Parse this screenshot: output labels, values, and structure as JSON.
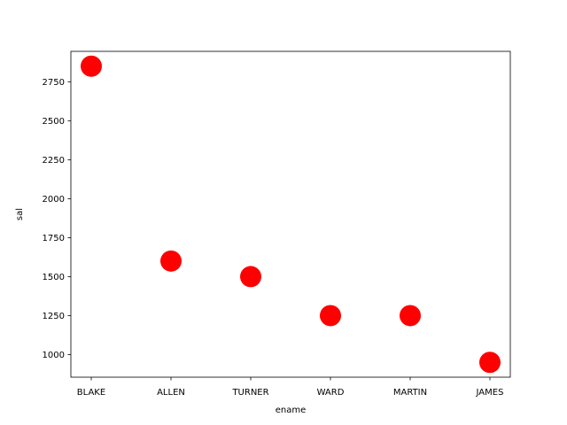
{
  "chart_data": {
    "type": "scatter",
    "title": "",
    "xlabel": "ename",
    "ylabel": "sal",
    "categories": [
      "BLAKE",
      "ALLEN",
      "TURNER",
      "WARD",
      "MARTIN",
      "JAMES"
    ],
    "values": [
      2850,
      1600,
      1500,
      1250,
      1250,
      950
    ],
    "ylim": [
      855,
      2945
    ],
    "yticks": [
      1000,
      1250,
      1500,
      1750,
      2000,
      2250,
      2500,
      2750
    ],
    "grid": false,
    "marker_color": "#ff0000"
  }
}
